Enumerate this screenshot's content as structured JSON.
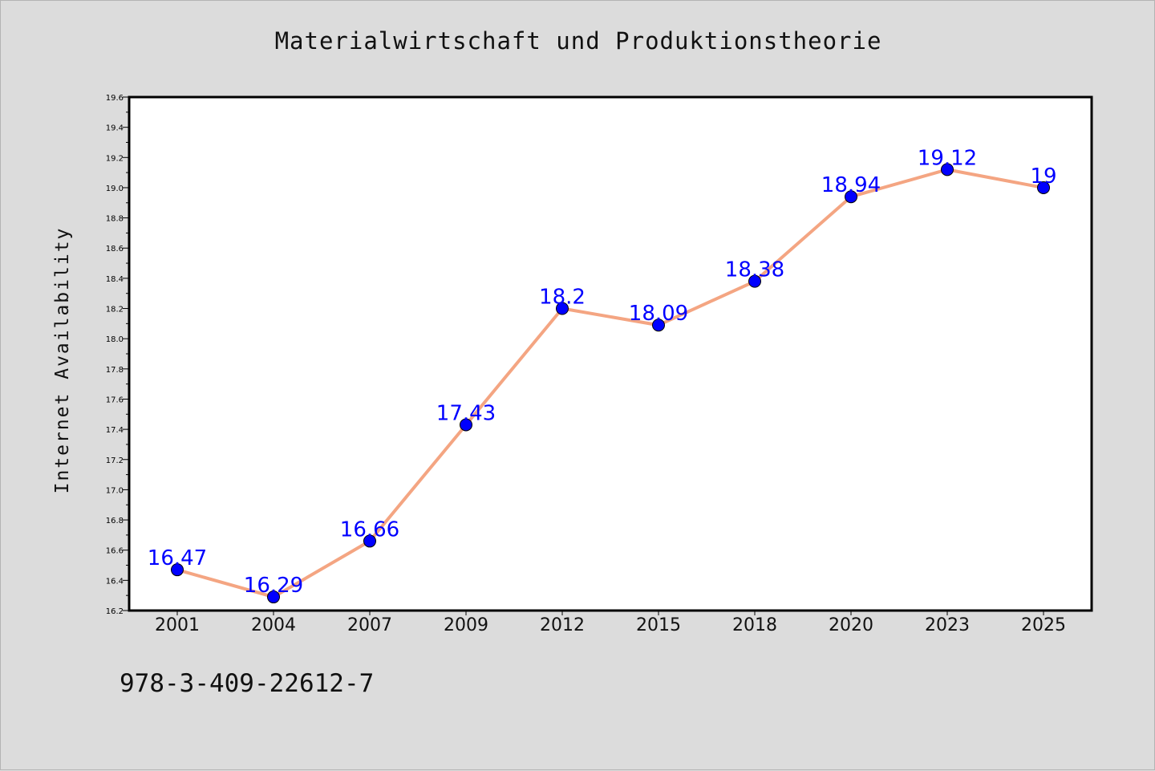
{
  "chart_data": {
    "type": "line",
    "title": "Materialwirtschaft und Produktionstheorie",
    "xlabel": "",
    "ylabel": "Internet Availability",
    "categories": [
      "2001",
      "2004",
      "2007",
      "2009",
      "2012",
      "2015",
      "2018",
      "2020",
      "2023",
      "2025"
    ],
    "series": [
      {
        "values": [
          16.47,
          16.29,
          16.66,
          17.43,
          18.2,
          18.09,
          18.38,
          18.94,
          19.12,
          19
        ]
      }
    ],
    "data_labels": [
      "16.47",
      "16.29",
      "16.66",
      "17.43",
      "18.2",
      "18.09",
      "18.38",
      "18.94",
      "19.12",
      "19"
    ],
    "ylim": [
      16.2,
      19.6
    ],
    "yticks": [
      "16.2",
      "16.4",
      "16.6",
      "16.8",
      "17.0",
      "17.2",
      "17.4",
      "17.6",
      "17.8",
      "18.0",
      "18.2",
      "18.4",
      "18.6",
      "18.8",
      "19.0",
      "19.2",
      "19.4",
      "19.6"
    ],
    "grid": false,
    "colors": {
      "line": "#f4a582",
      "marker": "#0000ff",
      "label": "#0000ff"
    }
  },
  "footer": {
    "isbn": "978-3-409-22612-7"
  }
}
